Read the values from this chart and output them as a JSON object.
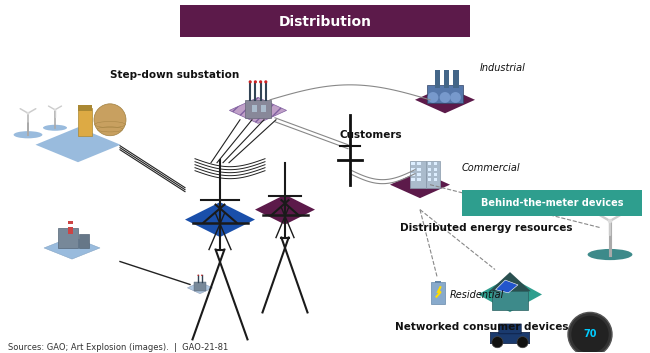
{
  "title": "Distribution",
  "title_bg": "#5c1a4a",
  "title_fg": "#ffffff",
  "bg_color": "#ffffff",
  "purple": "#5c1a4a",
  "teal": "#2e9e8e",
  "blue_pad": "#1a4faa",
  "lt_blue_pad": "#7ab0e0",
  "dark_grey": "#333333",
  "line_color": "#888888",
  "labels": {
    "step_down": "Step-down substation",
    "customers": "Customers",
    "industrial": "Industrial",
    "commercial": "Commercial",
    "behind_meter": "Behind-the-meter devices",
    "distributed": "Distributed energy resources",
    "residential": "Residential",
    "networked": "Networked consumer devices",
    "sources": "Sources: GAO; Art Explosion (images).  |  GAO-21-81"
  }
}
